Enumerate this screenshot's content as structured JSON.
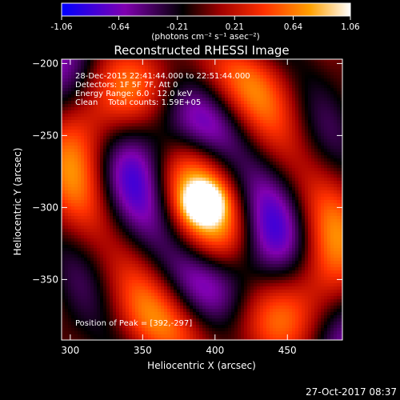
{
  "colorbar": {
    "ticks": [
      "-1.06",
      "-0.64",
      "-0.21",
      "0.21",
      "0.64",
      "1.06"
    ],
    "range": [
      -1.06,
      1.06
    ],
    "units": "(photons cm⁻² s⁻¹ asec⁻²)",
    "colors": [
      "#0000ff",
      "#8000b0",
      "#000000",
      "#a00000",
      "#ff3000",
      "#ffa000",
      "#ffffff"
    ]
  },
  "chart_data": {
    "type": "heatmap",
    "title": "Reconstructed RHESSI Image",
    "xlabel": "Heliocentric X (arcsec)",
    "ylabel": "Heliocentric Y (arcsec)",
    "xlim": [
      294,
      488
    ],
    "ylim": [
      -392,
      -197
    ],
    "xticks": [
      300,
      350,
      400,
      450
    ],
    "yticks": [
      -200,
      -250,
      -300,
      -350
    ],
    "peak": [
      392,
      -297
    ],
    "peak_value": 1.06,
    "annotations": [
      "28-Dec-2015 22:41:44.000 to 22:51:44.000",
      "Detectors: 1F 5F 7F, Att 0",
      "Energy Range: 6.0 - 12.0 keV",
      "Clean    Total counts: 1.59E+05"
    ],
    "peak_label": "Position of Peak = [392,-297]"
  },
  "footer": {
    "timestamp": "27-Oct-2017 08:37"
  }
}
